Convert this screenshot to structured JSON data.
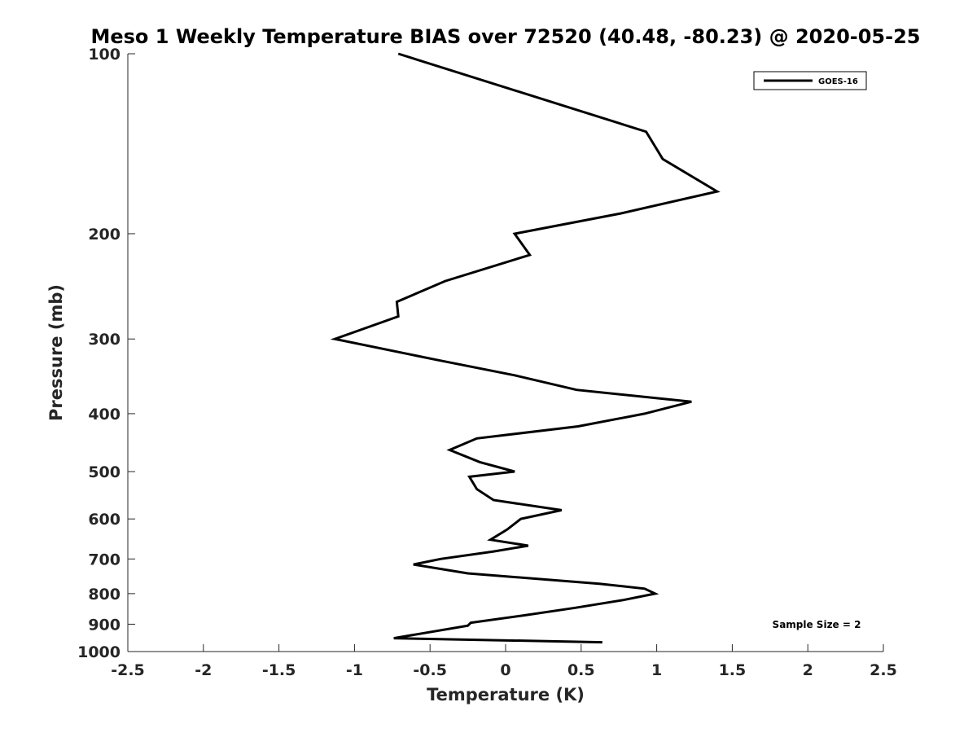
{
  "chart_data": {
    "type": "line",
    "title": "Meso 1 Weekly Temperature BIAS over 72520 (40.48, -80.23) @ 2020-05-25",
    "xlabel": "Temperature (K)",
    "ylabel": "Pressure (mb)",
    "xlim": [
      -2.5,
      2.5
    ],
    "ylim": [
      1000,
      100
    ],
    "y_scale": "log",
    "y_reversed": true,
    "x_ticks": [
      "-2.5",
      "-2",
      "-1.5",
      "-1",
      "-0.5",
      "0",
      "0.5",
      "1",
      "1.5",
      "2",
      "2.5"
    ],
    "x_tick_values": [
      -2.5,
      -2,
      -1.5,
      -1,
      -0.5,
      0,
      0.5,
      1,
      1.5,
      2,
      2.5
    ],
    "y_ticks": [
      "100",
      "200",
      "300",
      "400",
      "500",
      "600",
      "700",
      "800",
      "900",
      "1000"
    ],
    "y_tick_values": [
      100,
      200,
      300,
      400,
      500,
      600,
      700,
      800,
      900,
      1000
    ],
    "grid": false,
    "legend_position": "top-right",
    "annotation": "Sample Size = 2",
    "series": [
      {
        "name": "GOES-16",
        "color": "#000000",
        "points": [
          {
            "x": -0.71,
            "p": 100
          },
          {
            "x": 0.93,
            "p": 135
          },
          {
            "x": 1.04,
            "p": 150
          },
          {
            "x": 1.4,
            "p": 170
          },
          {
            "x": 0.76,
            "p": 185
          },
          {
            "x": 0.06,
            "p": 200
          },
          {
            "x": 0.16,
            "p": 217
          },
          {
            "x": -0.4,
            "p": 240
          },
          {
            "x": -0.72,
            "p": 260
          },
          {
            "x": -0.71,
            "p": 275
          },
          {
            "x": -1.13,
            "p": 300
          },
          {
            "x": -0.46,
            "p": 325
          },
          {
            "x": 0.06,
            "p": 345
          },
          {
            "x": 0.47,
            "p": 365
          },
          {
            "x": 1.23,
            "p": 382
          },
          {
            "x": 0.92,
            "p": 400
          },
          {
            "x": 0.48,
            "p": 420
          },
          {
            "x": -0.19,
            "p": 440
          },
          {
            "x": -0.37,
            "p": 460
          },
          {
            "x": -0.17,
            "p": 482
          },
          {
            "x": 0.06,
            "p": 500
          },
          {
            "x": -0.24,
            "p": 510
          },
          {
            "x": -0.19,
            "p": 535
          },
          {
            "x": -0.08,
            "p": 558
          },
          {
            "x": 0.37,
            "p": 580
          },
          {
            "x": 0.1,
            "p": 600
          },
          {
            "x": 0.01,
            "p": 625
          },
          {
            "x": -0.1,
            "p": 650
          },
          {
            "x": 0.15,
            "p": 665
          },
          {
            "x": -0.08,
            "p": 680
          },
          {
            "x": -0.43,
            "p": 700
          },
          {
            "x": -0.61,
            "p": 715
          },
          {
            "x": -0.25,
            "p": 740
          },
          {
            "x": 0.62,
            "p": 770
          },
          {
            "x": 0.92,
            "p": 785
          },
          {
            "x": 0.99,
            "p": 800
          },
          {
            "x": 0.78,
            "p": 820
          },
          {
            "x": 0.46,
            "p": 845
          },
          {
            "x": 0.12,
            "p": 870
          },
          {
            "x": -0.23,
            "p": 895
          },
          {
            "x": -0.25,
            "p": 905
          },
          {
            "x": -0.74,
            "p": 950
          },
          {
            "x": 0.64,
            "p": 965
          }
        ]
      }
    ]
  }
}
